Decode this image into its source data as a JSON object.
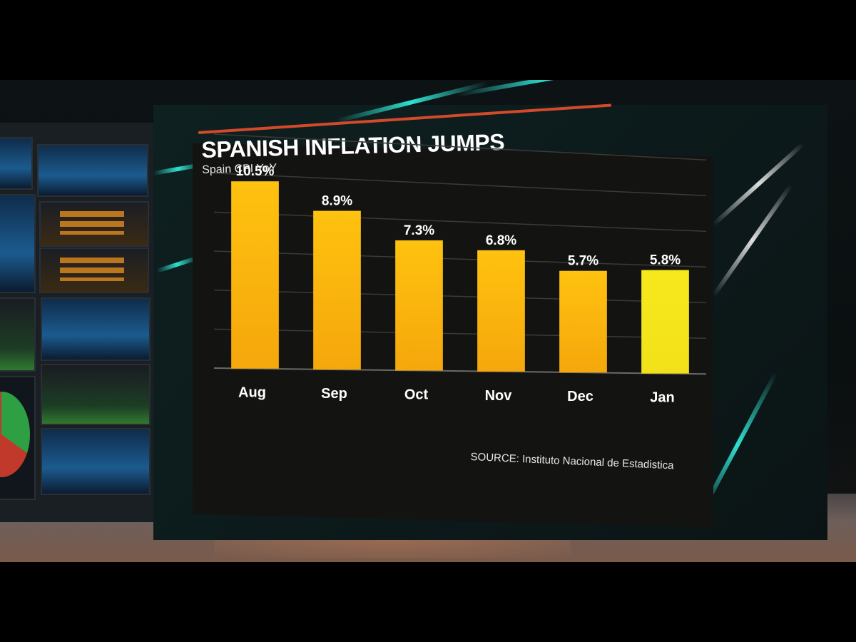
{
  "chart_data": {
    "type": "bar",
    "title": "SPANISH INFLATION JUMPS",
    "subtitle": "Spain CPI YoY",
    "categories": [
      "Aug",
      "Sep",
      "Oct",
      "Nov",
      "Dec",
      "Jan"
    ],
    "values": [
      10.5,
      8.9,
      7.3,
      6.8,
      5.7,
      5.8
    ],
    "value_labels": [
      "10.5%",
      "8.9%",
      "7.3%",
      "6.8%",
      "5.7%",
      "5.8%"
    ],
    "ylim": [
      0,
      12
    ],
    "grid": true,
    "legend": "none",
    "source": "SOURCE: Instituto Nacional de Estadistica",
    "colors": {
      "bar": "#f5a70c",
      "bar_highlight": "#f2e11a",
      "panel": "#131312",
      "accent": "#d34a2a",
      "streak": "#2fe0d0"
    },
    "highlight_index": 5
  }
}
